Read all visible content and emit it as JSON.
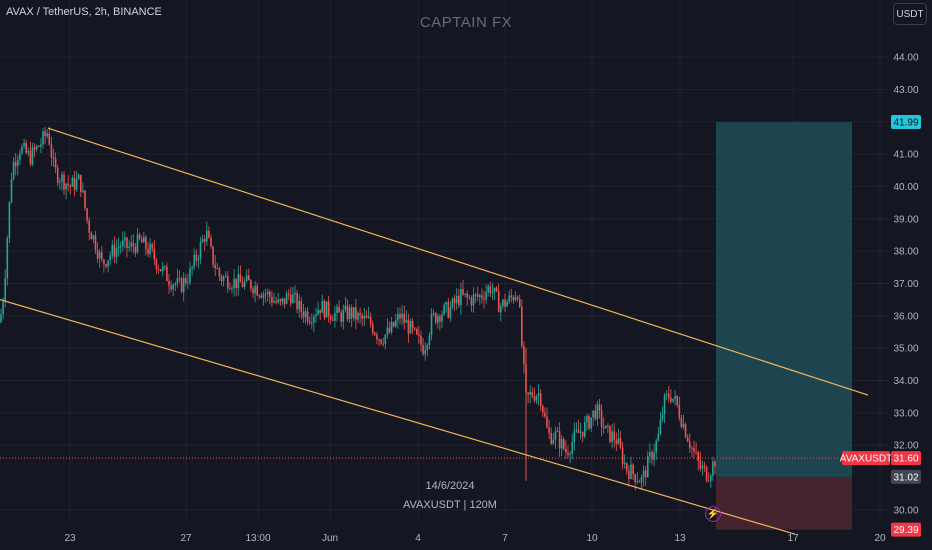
{
  "header": {
    "symbol_title": "AVAX / TetherUS, 2h, BINANCE",
    "watermark": "CAPTAIN FX",
    "currency_button": "USDT"
  },
  "price_axis": {
    "ticks": [
      "44.00",
      "43.00",
      "42.00",
      "41.00",
      "40.00",
      "39.00",
      "38.00",
      "37.00",
      "36.00",
      "35.00",
      "34.00",
      "33.00",
      "32.00",
      "30.00"
    ],
    "tick_values": [
      44,
      43,
      42,
      41,
      40,
      39,
      38,
      37,
      36,
      35,
      34,
      33,
      32,
      30
    ]
  },
  "time_axis": {
    "ticks": [
      "23",
      "27",
      "13:00",
      "Jun",
      "4",
      "7",
      "10",
      "13",
      "17",
      "20"
    ]
  },
  "labels": {
    "target_price": "41.99",
    "symbol_tag": "AVAXUSDT",
    "current_price": "31.60",
    "entry_price": "31.02",
    "stop_price": "29.39"
  },
  "info": {
    "date": "14/6/2024",
    "text": "AVAXUSDT | 120M"
  },
  "colors": {
    "background": "#141722",
    "up": "#26a69a",
    "down": "#ef5350",
    "channel": "#f0b35a",
    "target_zone": "#1e4d57",
    "stop_zone": "#4a2630",
    "target_label": "#26c6da",
    "price_label": "#f23645",
    "entry_label": "#434651"
  },
  "chart_data": {
    "type": "candlestick",
    "close_path": [
      [
        0,
        35.8
      ],
      [
        4,
        36.8
      ],
      [
        8,
        38.8
      ],
      [
        12,
        40.6
      ],
      [
        20,
        41.2
      ],
      [
        30,
        40.9
      ],
      [
        40,
        41.3
      ],
      [
        48,
        41.7
      ],
      [
        54,
        40.5
      ],
      [
        60,
        40.3
      ],
      [
        70,
        40.0
      ],
      [
        80,
        40.2
      ],
      [
        88,
        38.8
      ],
      [
        95,
        38.3
      ],
      [
        102,
        37.6
      ],
      [
        110,
        37.9
      ],
      [
        120,
        38.2
      ],
      [
        130,
        38.1
      ],
      [
        140,
        38.3
      ],
      [
        150,
        38.0
      ],
      [
        160,
        37.5
      ],
      [
        170,
        37.1
      ],
      [
        180,
        36.9
      ],
      [
        190,
        37.3
      ],
      [
        200,
        38.1
      ],
      [
        206,
        38.6
      ],
      [
        212,
        37.8
      ],
      [
        220,
        37.2
      ],
      [
        230,
        37.1
      ],
      [
        240,
        37.0
      ],
      [
        250,
        37.0
      ],
      [
        260,
        36.8
      ],
      [
        270,
        36.6
      ],
      [
        280,
        36.3
      ],
      [
        290,
        36.7
      ],
      [
        300,
        36.2
      ],
      [
        310,
        36.0
      ],
      [
        320,
        36.3
      ],
      [
        330,
        36.1
      ],
      [
        340,
        36.0
      ],
      [
        350,
        36.1
      ],
      [
        360,
        35.9
      ],
      [
        370,
        35.8
      ],
      [
        380,
        35.3
      ],
      [
        390,
        35.5
      ],
      [
        400,
        36.0
      ],
      [
        408,
        35.7
      ],
      [
        416,
        35.3
      ],
      [
        424,
        35.0
      ],
      [
        432,
        35.9
      ],
      [
        440,
        36.1
      ],
      [
        450,
        36.2
      ],
      [
        460,
        36.6
      ],
      [
        470,
        36.5
      ],
      [
        480,
        36.6
      ],
      [
        490,
        36.9
      ],
      [
        500,
        36.3
      ],
      [
        510,
        36.5
      ],
      [
        518,
        36.8
      ],
      [
        522,
        35.0
      ],
      [
        526,
        33.4
      ],
      [
        532,
        33.6
      ],
      [
        540,
        33.6
      ],
      [
        548,
        32.3
      ],
      [
        556,
        32.3
      ],
      [
        566,
        31.8
      ],
      [
        576,
        32.3
      ],
      [
        586,
        32.6
      ],
      [
        596,
        33.1
      ],
      [
        606,
        32.4
      ],
      [
        616,
        32.2
      ],
      [
        626,
        31.3
      ],
      [
        634,
        31.1
      ],
      [
        642,
        30.9
      ],
      [
        650,
        31.6
      ],
      [
        658,
        32.2
      ],
      [
        664,
        33.3
      ],
      [
        670,
        33.6
      ],
      [
        676,
        33.3
      ],
      [
        684,
        32.6
      ],
      [
        692,
        31.9
      ],
      [
        700,
        31.3
      ],
      [
        708,
        31.1
      ],
      [
        716,
        31.6
      ]
    ],
    "entry": 31.02,
    "target": 41.99,
    "stop": 29.39,
    "last_price": 31.6,
    "channel_upper": [
      [
        48,
        41.8
      ],
      [
        868,
        33.55
      ]
    ],
    "channel_lower": [
      [
        0,
        36.5
      ],
      [
        795,
        29.25
      ]
    ]
  }
}
